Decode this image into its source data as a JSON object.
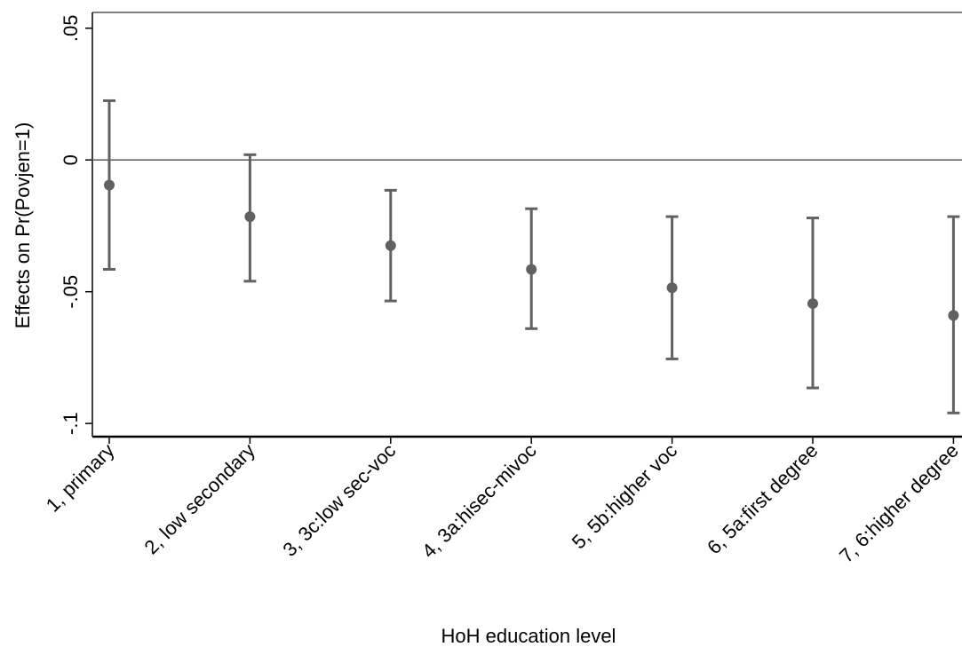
{
  "chart_data": {
    "type": "scatter",
    "title": "",
    "xlabel": "HoH education level",
    "ylabel": "Effects on Pr(Povjen=1)",
    "ylim": [
      -0.105,
      0.056
    ],
    "yticks": [
      {
        "value": 0.05,
        "label": ".05"
      },
      {
        "value": 0,
        "label": "0"
      },
      {
        "value": -0.05,
        "label": "-.05"
      },
      {
        "value": -0.1,
        "label": "-.1"
      }
    ],
    "reference_line": 0,
    "categories": [
      "1, primary",
      "2, low secondary",
      "3, 3c:low sec-voc",
      "4, 3a:hisec-mivoc",
      "5, 5b:higher voc",
      "6, 5a:first degree",
      "7, 6:higher degree"
    ],
    "estimates": [
      -0.0095,
      -0.0215,
      -0.0325,
      -0.0415,
      -0.0485,
      -0.0545,
      -0.059
    ],
    "ci_lower": [
      -0.0415,
      -0.046,
      -0.0535,
      -0.064,
      -0.0755,
      -0.0865,
      -0.096
    ],
    "ci_upper": [
      0.0225,
      0.002,
      -0.0115,
      -0.0185,
      -0.0215,
      -0.022,
      -0.0215
    ],
    "grid": false,
    "legend": "none",
    "colors": {
      "markers": "#616161",
      "axes": "#000000",
      "reference": "#595959"
    }
  }
}
